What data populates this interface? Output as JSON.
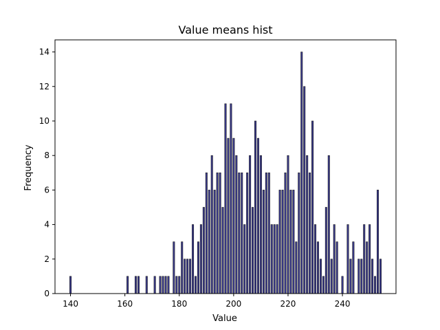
{
  "chart_data": {
    "type": "bar",
    "title": "Value means hist",
    "xlabel": "Value",
    "ylabel": "Frequency",
    "xlim": [
      134.3,
      259.7
    ],
    "ylim": [
      0,
      14.7
    ],
    "x_ticks": [
      140,
      160,
      180,
      200,
      220,
      240
    ],
    "y_ticks": [
      0,
      2,
      4,
      6,
      8,
      10,
      12,
      14
    ],
    "grid": false,
    "legend": "none",
    "bar_fill": "#3a3a8c",
    "bar_edge": "#1a1a1a",
    "x": [
      140,
      161,
      164,
      165,
      168,
      171,
      173,
      174,
      175,
      176,
      178,
      179,
      180,
      181,
      182,
      183,
      184,
      185,
      186,
      187,
      188,
      189,
      190,
      191,
      192,
      193,
      194,
      195,
      196,
      197,
      198,
      199,
      200,
      201,
      202,
      203,
      204,
      205,
      206,
      207,
      208,
      209,
      210,
      211,
      212,
      213,
      214,
      215,
      216,
      217,
      218,
      219,
      220,
      221,
      222,
      223,
      224,
      225,
      226,
      227,
      228,
      229,
      230,
      231,
      232,
      233,
      234,
      235,
      236,
      237,
      238,
      240,
      242,
      243,
      244,
      246,
      247,
      248,
      249,
      250,
      251,
      252,
      253,
      254
    ],
    "values": [
      1,
      1,
      1,
      1,
      1,
      1,
      1,
      1,
      1,
      1,
      3,
      1,
      1,
      3,
      2,
      2,
      2,
      4,
      1,
      3,
      4,
      5,
      7,
      6,
      8,
      6,
      7,
      7,
      5,
      11,
      9,
      11,
      9,
      8,
      7,
      7,
      4,
      7,
      8,
      5,
      10,
      9,
      8,
      6,
      7,
      7,
      4,
      4,
      4,
      6,
      6,
      7,
      8,
      6,
      6,
      3,
      7,
      14,
      12,
      8,
      7,
      10,
      4,
      3,
      2,
      1,
      5,
      8,
      2,
      4,
      3,
      1,
      4,
      2,
      3,
      2,
      2,
      4,
      3,
      4,
      2,
      1,
      6,
      2
    ]
  }
}
